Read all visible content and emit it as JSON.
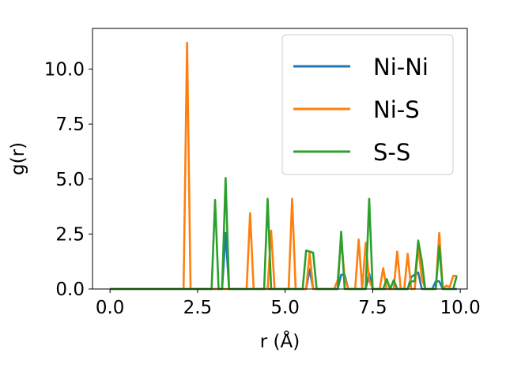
{
  "chart_data": {
    "type": "line",
    "xlabel": "r (Å)",
    "ylabel": "g(r)",
    "xlim": [
      -0.5,
      10.2
    ],
    "ylim": [
      0,
      11.85
    ],
    "xticks": [
      0.0,
      2.5,
      5.0,
      7.5,
      10.0
    ],
    "xtick_labels": [
      "0.0",
      "2.5",
      "5.0",
      "7.5",
      "10.0"
    ],
    "yticks": [
      0.0,
      2.5,
      5.0,
      7.5,
      10.0
    ],
    "ytick_labels": [
      "0.0",
      "2.5",
      "5.0",
      "7.5",
      "10.0"
    ],
    "grid": false,
    "legend_position": "top-right",
    "series": [
      {
        "name": "Ni-Ni",
        "color": "#1f77b4",
        "x": [
          0.0,
          3.1,
          3.2,
          3.3,
          3.4,
          5.6,
          5.7,
          5.8,
          6.5,
          6.6,
          6.7,
          6.8,
          7.3,
          7.4,
          7.5,
          8.5,
          8.6,
          8.7,
          8.8,
          8.9,
          9.2,
          9.3,
          9.4,
          9.5,
          9.9
        ],
        "y": [
          0,
          0,
          0,
          2.55,
          0,
          0,
          0.9,
          0,
          0,
          0.65,
          0.65,
          0,
          0,
          0.7,
          0,
          0,
          0.55,
          0.65,
          0.75,
          0,
          0,
          0.35,
          0.35,
          0,
          0
        ]
      },
      {
        "name": "Ni-S",
        "color": "#ff7f0e",
        "x": [
          0.0,
          2.1,
          2.2,
          2.3,
          3.9,
          4.0,
          4.1,
          4.5,
          4.6,
          4.7,
          5.1,
          5.2,
          5.3,
          5.6,
          5.7,
          5.8,
          6.4,
          6.5,
          6.6,
          6.7,
          6.8,
          6.9,
          7.0,
          7.1,
          7.2,
          7.3,
          7.4,
          7.5,
          7.6,
          7.7,
          7.8,
          7.9,
          8.0,
          8.1,
          8.2,
          8.3,
          8.4,
          8.5,
          8.6,
          8.7,
          8.8,
          8.9,
          9.0,
          9.1,
          9.2,
          9.3,
          9.4,
          9.5,
          9.6,
          9.7,
          9.8,
          9.9
        ],
        "y": [
          0,
          0,
          11.2,
          0,
          0,
          3.45,
          0,
          0,
          2.65,
          0,
          0,
          4.1,
          0,
          0,
          1.65,
          0,
          0,
          0.4,
          2.25,
          0.5,
          0,
          0,
          0,
          2.25,
          0,
          2.1,
          0.4,
          0,
          0,
          0,
          0.95,
          0,
          0,
          0,
          1.7,
          0,
          0,
          1.6,
          0,
          0,
          1.95,
          0.5,
          0,
          0,
          0,
          0,
          2.55,
          0,
          0.15,
          0.1,
          0.6,
          0.6
        ]
      },
      {
        "name": "S-S",
        "color": "#2ca02c",
        "x": [
          0.0,
          2.9,
          3.0,
          3.1,
          3.2,
          3.3,
          3.4,
          4.4,
          4.5,
          4.6,
          5.5,
          5.6,
          5.7,
          5.8,
          5.9,
          6.5,
          6.6,
          6.7,
          7.3,
          7.4,
          7.5,
          7.7,
          7.8,
          7.9,
          8.0,
          8.1,
          8.2,
          8.3,
          8.4,
          8.5,
          8.6,
          8.7,
          8.8,
          8.9,
          9.0,
          9.2,
          9.3,
          9.4,
          9.5,
          9.8,
          9.9
        ],
        "y": [
          0,
          0,
          4.05,
          0,
          0,
          5.05,
          0,
          0,
          4.1,
          0,
          0,
          1.75,
          1.7,
          1.65,
          0,
          0,
          2.6,
          0,
          0,
          4.1,
          0,
          0,
          0,
          0.45,
          0,
          0.4,
          0,
          0,
          0,
          0,
          0.35,
          0.35,
          2.2,
          1.3,
          0,
          0,
          0,
          1.95,
          0,
          0,
          0.6
        ]
      }
    ]
  }
}
